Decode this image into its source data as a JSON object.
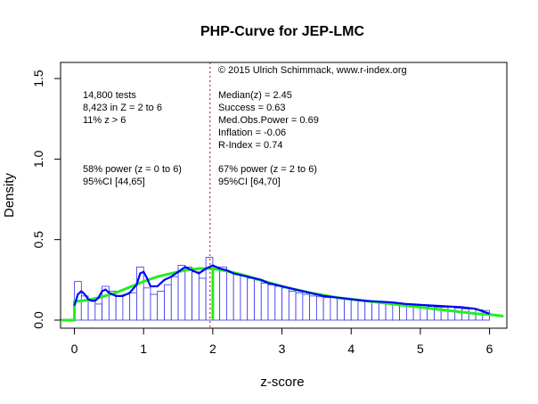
{
  "chart_data": {
    "type": "histogram",
    "title": "PHP-Curve for JEP-LMC",
    "xlabel": "z-score",
    "ylabel": "Density",
    "xlim": [
      -0.2,
      6.25
    ],
    "ylim": [
      -0.05,
      1.6
    ],
    "x_ticks": [
      0,
      1,
      2,
      3,
      4,
      5,
      6
    ],
    "x_tick_labels": [
      "0",
      "1",
      "2",
      "3",
      "4",
      "5",
      "6"
    ],
    "y_ticks": [
      0.0,
      0.5,
      1.0,
      1.5
    ],
    "y_tick_labels": [
      "0.0",
      "0.5",
      "1.0",
      "1.5"
    ],
    "bin_width": 0.1,
    "bin_start": 0,
    "bin_heights": [
      0.24,
      0.15,
      0.12,
      0.1,
      0.21,
      0.18,
      0.15,
      0.16,
      0.17,
      0.33,
      0.2,
      0.16,
      0.18,
      0.22,
      0.27,
      0.34,
      0.33,
      0.3,
      0.26,
      0.39,
      0.33,
      0.33,
      0.3,
      0.29,
      0.28,
      0.26,
      0.25,
      0.23,
      0.22,
      0.21,
      0.2,
      0.18,
      0.17,
      0.16,
      0.15,
      0.145,
      0.14,
      0.14,
      0.135,
      0.13,
      0.13,
      0.12,
      0.115,
      0.11,
      0.105,
      0.105,
      0.1,
      0.1,
      0.095,
      0.09,
      0.09,
      0.085,
      0.08,
      0.08,
      0.08,
      0.075,
      0.07,
      0.07,
      0.065,
      0.06
    ],
    "kde_curve": {
      "color": "#0000ff",
      "x": [
        0.0,
        0.05,
        0.1,
        0.15,
        0.2,
        0.25,
        0.3,
        0.35,
        0.4,
        0.45,
        0.5,
        0.6,
        0.7,
        0.8,
        0.9,
        0.95,
        1.0,
        1.05,
        1.1,
        1.2,
        1.3,
        1.4,
        1.5,
        1.6,
        1.7,
        1.8,
        1.9,
        2.0,
        2.1,
        2.2,
        2.3,
        2.4,
        2.5,
        2.6,
        2.7,
        2.8,
        2.9,
        3.0,
        3.2,
        3.4,
        3.6,
        3.8,
        4.0,
        4.2,
        4.4,
        4.6,
        4.8,
        5.0,
        5.2,
        5.4,
        5.6,
        5.8,
        6.0
      ],
      "y": [
        0.09,
        0.16,
        0.18,
        0.16,
        0.13,
        0.12,
        0.12,
        0.14,
        0.18,
        0.19,
        0.17,
        0.15,
        0.15,
        0.17,
        0.22,
        0.29,
        0.3,
        0.26,
        0.21,
        0.21,
        0.25,
        0.27,
        0.3,
        0.33,
        0.31,
        0.29,
        0.32,
        0.34,
        0.32,
        0.31,
        0.29,
        0.28,
        0.27,
        0.26,
        0.25,
        0.23,
        0.22,
        0.21,
        0.19,
        0.17,
        0.15,
        0.14,
        0.13,
        0.12,
        0.115,
        0.11,
        0.1,
        0.095,
        0.09,
        0.085,
        0.08,
        0.07,
        0.04
      ]
    },
    "fit_curve": {
      "color": "#22ee22",
      "x": [
        -0.2,
        0.0,
        0.0,
        0.2,
        0.4,
        0.6,
        0.8,
        1.0,
        1.2,
        1.4,
        1.6,
        1.8,
        2.0,
        2.2,
        2.4,
        2.6,
        2.8,
        3.0,
        3.2,
        3.4,
        3.6,
        3.8,
        4.0,
        4.2,
        4.4,
        4.6,
        4.8,
        5.0,
        5.2,
        5.4,
        5.6,
        5.8,
        6.0,
        6.2
      ],
      "y": [
        0.0,
        0.0,
        0.115,
        0.125,
        0.145,
        0.17,
        0.205,
        0.24,
        0.27,
        0.29,
        0.31,
        0.32,
        0.32,
        0.305,
        0.285,
        0.26,
        0.235,
        0.21,
        0.19,
        0.17,
        0.155,
        0.14,
        0.13,
        0.12,
        0.11,
        0.1,
        0.09,
        0.08,
        0.07,
        0.06,
        0.05,
        0.04,
        0.035,
        0.025
      ],
      "drop_at": 2.0,
      "drop_range": [
        0.0,
        0.32
      ]
    },
    "vline": {
      "x": 1.96,
      "color": "#cc0000",
      "style": "dotted"
    },
    "annotations": {
      "copyright": "© 2015 Ulrich Schimmack, www.r-index.org",
      "left_block_1": [
        "14,800 tests",
        "8,423 in Z = 2 to 6",
        "11% z > 6"
      ],
      "left_block_2": [
        "58% power (z = 0 to 6)",
        "95%CI [44,65]"
      ],
      "right_block_1": [
        "Median(z) = 2.45",
        "Success = 0.63",
        "Med.Obs.Power = 0.69",
        "Inflation = -0.06",
        "R-Index = 0.74"
      ],
      "right_block_2": [
        "67% power (z = 2 to 6)",
        "95%CI [64,70]"
      ]
    },
    "grid": false,
    "legend": "none"
  }
}
